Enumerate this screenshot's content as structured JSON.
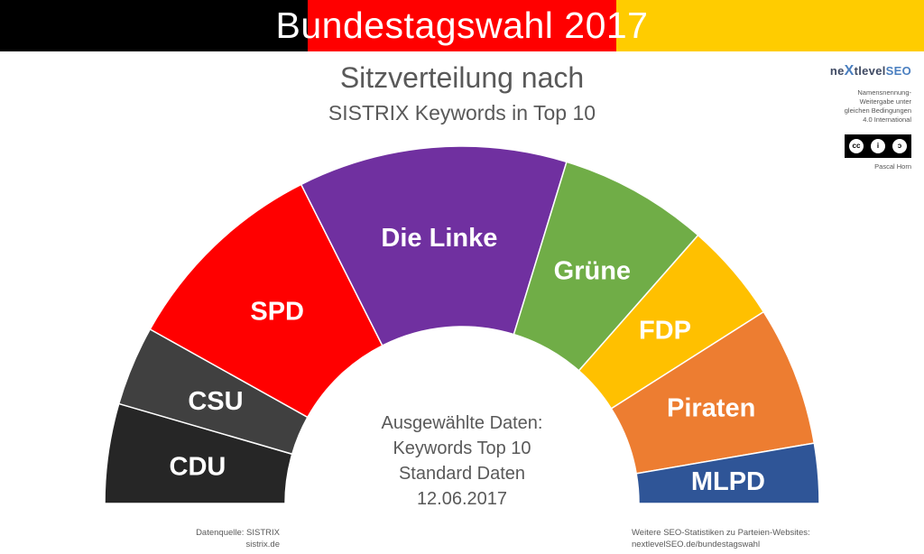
{
  "header": {
    "banner_title": "Bundestagswahl 2017",
    "banner_colors": [
      "#000000",
      "#ff0000",
      "#ffcc00"
    ]
  },
  "chart_data": {
    "type": "pie",
    "title": "Sitzverteilung nach",
    "subtitle": "SISTRIX Keywords in Top 10",
    "shape": "semicircle-donut",
    "series": [
      {
        "name": "CDU",
        "value": 10,
        "color": "#262626"
      },
      {
        "name": "CSU",
        "value": 8,
        "color": "#404040"
      },
      {
        "name": "SPD",
        "value": 21,
        "color": "#ff0000"
      },
      {
        "name": "Die Linke",
        "value": 27,
        "color": "#7030a0"
      },
      {
        "name": "Grüne",
        "value": 15,
        "color": "#70ad47"
      },
      {
        "name": "FDP",
        "value": 10,
        "color": "#ffc000"
      },
      {
        "name": "Piraten",
        "value": 14,
        "color": "#ed7d31"
      },
      {
        "name": "MLPD",
        "value": 6,
        "color": "#2f5597"
      }
    ]
  },
  "center_text": {
    "line1": "Ausgewählte Daten:",
    "line2": "Keywords Top 10",
    "line3": "Standard Daten",
    "line4": "12.06.2017"
  },
  "logo": {
    "part1": "ne",
    "part2": "X",
    "part3": "tlevel",
    "part4": "SEO"
  },
  "license": {
    "line1": "Namensnennung-",
    "line2": "Weitergabe unter",
    "line3": "gleichen Bedingungen",
    "line4": "4.0 International",
    "author": "Pascal Horn"
  },
  "footer": {
    "source_line1": "Datenquelle: SISTRIX",
    "source_line2": "sistrix.de",
    "more_line1": "Weitere SEO-Statistiken zu Parteien-Websites:",
    "more_line2": "nextlevelSEO.de/bundestagswahl"
  }
}
